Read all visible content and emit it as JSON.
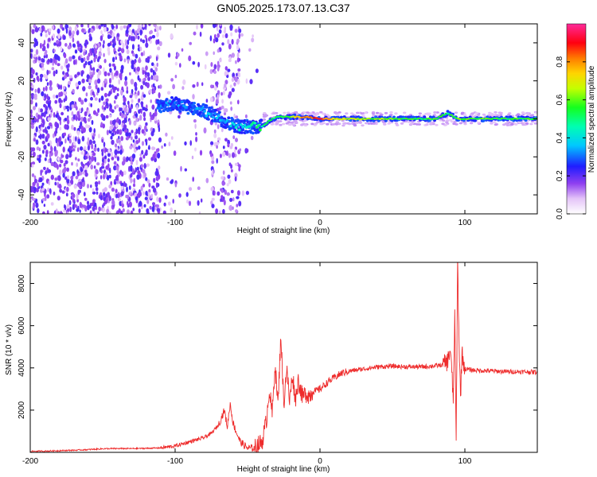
{
  "figure": {
    "title": "GN05.2025.173.07.13.C37"
  },
  "chart_data": [
    {
      "type": "heatmap",
      "xlabel": "Height of straight line (km)",
      "ylabel": "Frequency (Hz)",
      "xlim": [
        -200,
        150
      ],
      "ylim": [
        -50,
        50
      ],
      "xticks": [
        -200,
        -100,
        0,
        100
      ],
      "yticks": [
        -40,
        -20,
        0,
        20,
        40
      ],
      "grid": false,
      "colorbar": {
        "label": "Normalized spectral amplitude",
        "range": [
          0,
          1
        ],
        "ticks": [
          0.0,
          0.2,
          0.4,
          0.6,
          0.8
        ]
      },
      "ridge": [
        {
          "x": -110,
          "f": 7,
          "amp": 0.3
        },
        {
          "x": -100,
          "f": 8,
          "amp": 0.3
        },
        {
          "x": -90,
          "f": 6,
          "amp": 0.3
        },
        {
          "x": -80,
          "f": 4,
          "amp": 0.35
        },
        {
          "x": -70,
          "f": 1,
          "amp": 0.35
        },
        {
          "x": -65,
          "f": -2,
          "amp": 0.35
        },
        {
          "x": -55,
          "f": -4,
          "amp": 0.4
        },
        {
          "x": -45,
          "f": -4,
          "amp": 0.45
        },
        {
          "x": -40,
          "f": -4,
          "amp": 0.5
        },
        {
          "x": -35,
          "f": -1,
          "amp": 0.5
        },
        {
          "x": -30,
          "f": 1,
          "amp": 0.5
        },
        {
          "x": -20,
          "f": 1,
          "amp": 0.6
        },
        {
          "x": -15,
          "f": 1,
          "amp": 0.75
        },
        {
          "x": -10,
          "f": 1,
          "amp": 0.8
        },
        {
          "x": 0,
          "f": 0,
          "amp": 0.9
        },
        {
          "x": 10,
          "f": 0,
          "amp": 0.7
        },
        {
          "x": 20,
          "f": 0,
          "amp": 0.65
        },
        {
          "x": 40,
          "f": 0,
          "amp": 0.6
        },
        {
          "x": 60,
          "f": 0,
          "amp": 0.55
        },
        {
          "x": 80,
          "f": 0,
          "amp": 0.55
        },
        {
          "x": 88,
          "f": 3,
          "amp": 0.5
        },
        {
          "x": 95,
          "f": 0,
          "amp": 0.6
        },
        {
          "x": 120,
          "f": 0,
          "amp": 0.55
        },
        {
          "x": 150,
          "f": 0,
          "amp": 0.55
        }
      ]
    },
    {
      "type": "line",
      "xlabel": "Height of straight line (km)",
      "ylabel": "SNR (10 * v/v)",
      "xlim": [
        -200,
        150
      ],
      "ylim": [
        0,
        9000
      ],
      "xticks": [
        -200,
        -100,
        0,
        100
      ],
      "yticks": [
        2000,
        4000,
        6000,
        8000
      ],
      "grid": false,
      "series": [
        {
          "color": "#ee2b2b",
          "x": [
            -200,
            -190,
            -180,
            -170,
            -160,
            -150,
            -140,
            -130,
            -120,
            -110,
            -100,
            -95,
            -90,
            -85,
            -80,
            -75,
            -70,
            -66,
            -64,
            -62,
            -60,
            -58,
            -55,
            -50,
            -45,
            -40,
            -37,
            -35,
            -33,
            -31,
            -29,
            -27,
            -25,
            -23,
            -21,
            -19,
            -17,
            -15,
            -12,
            -10,
            -7,
            -5,
            -3,
            0,
            5,
            10,
            15,
            20,
            25,
            30,
            40,
            50,
            60,
            70,
            80,
            85,
            88,
            90,
            92,
            93,
            94,
            95,
            96,
            97,
            98,
            100,
            105,
            110,
            120,
            130,
            140,
            150
          ],
          "values": [
            50,
            60,
            80,
            100,
            130,
            170,
            180,
            180,
            190,
            210,
            300,
            400,
            500,
            600,
            700,
            900,
            1300,
            2000,
            1200,
            2300,
            1400,
            1000,
            500,
            200,
            200,
            500,
            1500,
            3000,
            1800,
            4200,
            2200,
            5600,
            2300,
            4000,
            2400,
            3700,
            2500,
            3400,
            2600,
            2800,
            2700,
            2900,
            2900,
            3000,
            3300,
            3550,
            3750,
            3850,
            3900,
            3950,
            4050,
            4080,
            4050,
            4050,
            4100,
            4150,
            4300,
            4900,
            2500,
            6500,
            400,
            9000,
            5200,
            2600,
            4700,
            3950,
            3900,
            3880,
            3850,
            3820,
            3820,
            3800
          ]
        }
      ]
    }
  ]
}
